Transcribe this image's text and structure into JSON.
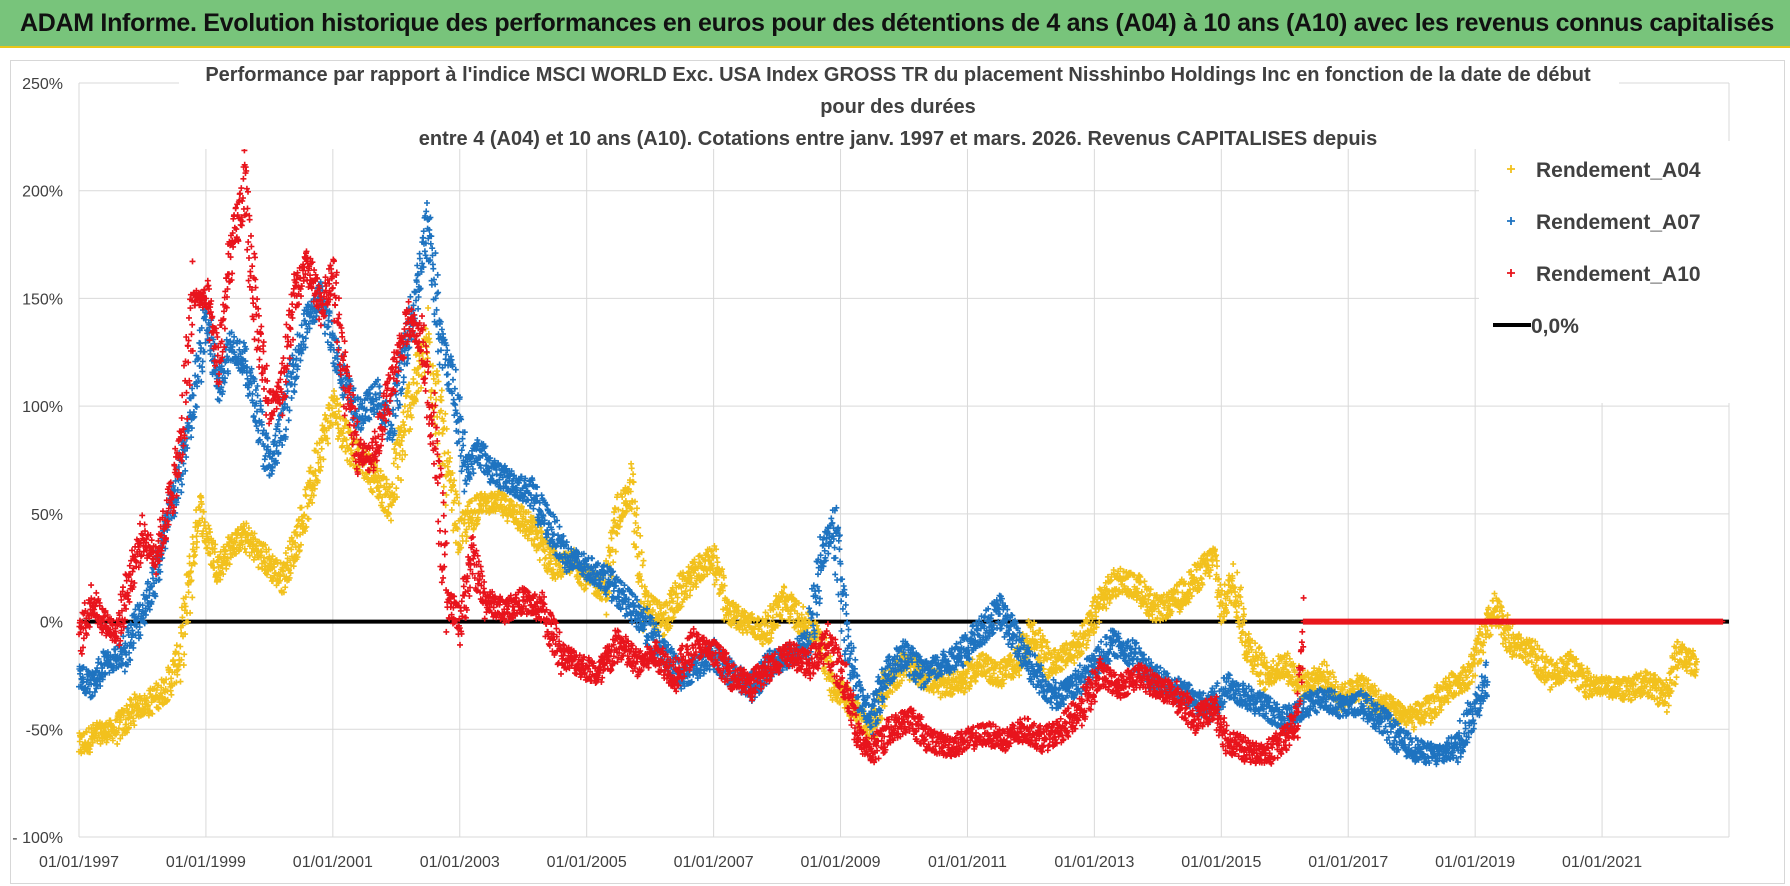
{
  "banner": {
    "text": "ADAM Informe. Evolution historique des performances en euros pour des détentions de 4 ans (A04) à 10 ans (A10) avec les revenus connus capitalisés"
  },
  "chart_data": {
    "type": "scatter",
    "title_lines": [
      "Performance par rapport à l'indice MSCI WORLD Exc. USA Index GROSS TR  du placement Nisshinbo Holdings Inc en fonction de la date de début",
      "pour des durées",
      "entre 4 (A04) et 10 ans (A10). Cotations entre janv. 1997 et mars. 2026. Revenus CAPITALISES depuis"
    ],
    "xlabel": "",
    "ylabel": "",
    "x_range": [
      "01/01/1997",
      "31/12/2022"
    ],
    "x_tick_labels": [
      "01/01/1997",
      "01/01/1999",
      "01/01/2001",
      "01/01/2003",
      "01/01/2005",
      "01/01/2007",
      "01/01/2009",
      "01/01/2011",
      "01/01/2013",
      "01/01/2015",
      "01/01/2017",
      "01/01/2019",
      "01/01/2021"
    ],
    "x_tick_years": [
      1997,
      1999,
      2001,
      2003,
      2005,
      2007,
      2009,
      2011,
      2013,
      2015,
      2017,
      2019,
      2021
    ],
    "ylim": [
      -100,
      250
    ],
    "y_ticks": [
      -100,
      -50,
      0,
      50,
      100,
      150,
      200,
      250
    ],
    "y_tick_labels": [
      "- 100%",
      "-50%",
      "0%",
      "50%",
      "100%",
      "150%",
      "200%",
      "250%"
    ],
    "grid": true,
    "legend_position": "top-right",
    "legend": [
      {
        "name": "Rendement_A04",
        "color": "#f2c11d",
        "marker": "+"
      },
      {
        "name": "Rendement_A07",
        "color": "#1e73c0",
        "marker": "+"
      },
      {
        "name": "Rendement_A10",
        "color": "#e8141c",
        "marker": "+"
      },
      {
        "name": "0,0%",
        "color": "#000000",
        "marker": "line"
      }
    ],
    "series": [
      {
        "name": "Rendement_A04",
        "color": "#f2c11d",
        "points": [
          [
            1997.0,
            -58
          ],
          [
            1997.3,
            -52
          ],
          [
            1997.6,
            -50
          ],
          [
            1997.9,
            -40
          ],
          [
            1998.1,
            -38
          ],
          [
            1998.4,
            -30
          ],
          [
            1998.6,
            -15
          ],
          [
            1998.8,
            30
          ],
          [
            1998.9,
            55
          ],
          [
            1999.0,
            40
          ],
          [
            1999.2,
            25
          ],
          [
            1999.4,
            35
          ],
          [
            1999.6,
            40
          ],
          [
            1999.9,
            30
          ],
          [
            2000.2,
            20
          ],
          [
            2000.4,
            35
          ],
          [
            2000.6,
            55
          ],
          [
            2000.8,
            80
          ],
          [
            2001.0,
            100
          ],
          [
            2001.3,
            80
          ],
          [
            2001.6,
            70
          ],
          [
            2001.9,
            55
          ],
          [
            2002.2,
            100
          ],
          [
            2002.5,
            130
          ],
          [
            2002.8,
            70
          ],
          [
            2003.0,
            40
          ],
          [
            2003.3,
            55
          ],
          [
            2003.6,
            55
          ],
          [
            2003.9,
            50
          ],
          [
            2004.2,
            40
          ],
          [
            2004.5,
            25
          ],
          [
            2004.8,
            28
          ],
          [
            2005.0,
            20
          ],
          [
            2005.3,
            15
          ],
          [
            2005.5,
            50
          ],
          [
            2005.7,
            60
          ],
          [
            2005.9,
            10
          ],
          [
            2006.2,
            0
          ],
          [
            2006.5,
            15
          ],
          [
            2006.8,
            25
          ],
          [
            2007.0,
            30
          ],
          [
            2007.2,
            5
          ],
          [
            2007.5,
            0
          ],
          [
            2007.8,
            -5
          ],
          [
            2008.1,
            10
          ],
          [
            2008.4,
            0
          ],
          [
            2008.7,
            -10
          ],
          [
            2008.9,
            -30
          ],
          [
            2009.1,
            -35
          ],
          [
            2009.3,
            -45
          ],
          [
            2009.5,
            -50
          ],
          [
            2009.7,
            -30
          ],
          [
            2010.0,
            -20
          ],
          [
            2010.3,
            -25
          ],
          [
            2010.6,
            -30
          ],
          [
            2010.9,
            -28
          ],
          [
            2011.2,
            -20
          ],
          [
            2011.5,
            -25
          ],
          [
            2011.8,
            -18
          ],
          [
            2012.0,
            -5
          ],
          [
            2012.3,
            -20
          ],
          [
            2012.6,
            -15
          ],
          [
            2012.9,
            -5
          ],
          [
            2013.1,
            10
          ],
          [
            2013.4,
            20
          ],
          [
            2013.7,
            15
          ],
          [
            2014.0,
            5
          ],
          [
            2014.3,
            10
          ],
          [
            2014.6,
            20
          ],
          [
            2014.9,
            30
          ],
          [
            2015.0,
            5
          ],
          [
            2015.2,
            20
          ],
          [
            2015.4,
            -10
          ],
          [
            2015.7,
            -25
          ],
          [
            2016.0,
            -20
          ],
          [
            2016.3,
            -30
          ],
          [
            2016.6,
            -25
          ],
          [
            2016.9,
            -35
          ],
          [
            2017.2,
            -30
          ],
          [
            2017.5,
            -38
          ],
          [
            2017.8,
            -42
          ],
          [
            2018.0,
            -45
          ],
          [
            2018.3,
            -40
          ],
          [
            2018.6,
            -30
          ],
          [
            2018.9,
            -25
          ],
          [
            2019.1,
            -10
          ],
          [
            2019.3,
            5
          ],
          [
            2019.6,
            -10
          ],
          [
            2019.9,
            -15
          ],
          [
            2020.2,
            -25
          ],
          [
            2020.5,
            -20
          ],
          [
            2020.8,
            -30
          ],
          [
            2021.1,
            -30
          ],
          [
            2021.4,
            -32
          ],
          [
            2021.7,
            -28
          ],
          [
            2022.0,
            -35
          ],
          [
            2022.2,
            -15
          ],
          [
            2022.5,
            -20
          ]
        ]
      },
      {
        "name": "Rendement_A07",
        "color": "#1e73c0",
        "points": [
          [
            1997.0,
            -25
          ],
          [
            1997.2,
            -30
          ],
          [
            1997.4,
            -20
          ],
          [
            1997.7,
            -15
          ],
          [
            1998.0,
            5
          ],
          [
            1998.2,
            20
          ],
          [
            1998.4,
            45
          ],
          [
            1998.6,
            70
          ],
          [
            1998.8,
            100
          ],
          [
            1999.0,
            140
          ],
          [
            1999.2,
            110
          ],
          [
            1999.4,
            130
          ],
          [
            1999.6,
            120
          ],
          [
            1999.8,
            100
          ],
          [
            2000.0,
            70
          ],
          [
            2000.2,
            90
          ],
          [
            2000.4,
            120
          ],
          [
            2000.6,
            140
          ],
          [
            2000.8,
            150
          ],
          [
            2001.0,
            130
          ],
          [
            2001.2,
            110
          ],
          [
            2001.4,
            95
          ],
          [
            2001.7,
            105
          ],
          [
            2001.9,
            90
          ],
          [
            2002.1,
            120
          ],
          [
            2002.3,
            150
          ],
          [
            2002.5,
            185
          ],
          [
            2002.7,
            130
          ],
          [
            2002.9,
            110
          ],
          [
            2003.1,
            70
          ],
          [
            2003.3,
            80
          ],
          [
            2003.5,
            70
          ],
          [
            2003.8,
            65
          ],
          [
            2004.1,
            60
          ],
          [
            2004.4,
            45
          ],
          [
            2004.7,
            30
          ],
          [
            2005.0,
            25
          ],
          [
            2005.3,
            20
          ],
          [
            2005.6,
            10
          ],
          [
            2005.9,
            0
          ],
          [
            2006.2,
            -15
          ],
          [
            2006.5,
            -25
          ],
          [
            2006.8,
            -20
          ],
          [
            2007.0,
            -15
          ],
          [
            2007.3,
            -25
          ],
          [
            2007.6,
            -30
          ],
          [
            2007.9,
            -20
          ],
          [
            2008.2,
            -15
          ],
          [
            2008.5,
            -10
          ],
          [
            2008.7,
            30
          ],
          [
            2008.9,
            45
          ],
          [
            2009.1,
            -10
          ],
          [
            2009.3,
            -35
          ],
          [
            2009.5,
            -45
          ],
          [
            2009.7,
            -25
          ],
          [
            2010.0,
            -15
          ],
          [
            2010.3,
            -25
          ],
          [
            2010.6,
            -20
          ],
          [
            2010.9,
            -15
          ],
          [
            2011.2,
            -5
          ],
          [
            2011.5,
            5
          ],
          [
            2011.8,
            -10
          ],
          [
            2012.1,
            -25
          ],
          [
            2012.4,
            -35
          ],
          [
            2012.7,
            -30
          ],
          [
            2013.0,
            -20
          ],
          [
            2013.3,
            -10
          ],
          [
            2013.6,
            -15
          ],
          [
            2013.9,
            -25
          ],
          [
            2014.2,
            -30
          ],
          [
            2014.5,
            -35
          ],
          [
            2014.8,
            -40
          ],
          [
            2015.1,
            -30
          ],
          [
            2015.4,
            -35
          ],
          [
            2015.7,
            -40
          ],
          [
            2016.0,
            -45
          ],
          [
            2016.3,
            -40
          ],
          [
            2016.6,
            -35
          ],
          [
            2016.9,
            -40
          ],
          [
            2017.2,
            -38
          ],
          [
            2017.5,
            -45
          ],
          [
            2017.8,
            -55
          ],
          [
            2018.1,
            -60
          ],
          [
            2018.4,
            -62
          ],
          [
            2018.7,
            -58
          ],
          [
            2019.0,
            -40
          ],
          [
            2019.2,
            -25
          ]
        ]
      },
      {
        "name": "Rendement_A10",
        "color": "#e8141c",
        "points": [
          [
            1997.0,
            -10
          ],
          [
            1997.2,
            10
          ],
          [
            1997.4,
            0
          ],
          [
            1997.6,
            -5
          ],
          [
            1997.8,
            20
          ],
          [
            1998.0,
            40
          ],
          [
            1998.2,
            30
          ],
          [
            1998.4,
            50
          ],
          [
            1998.6,
            80
          ],
          [
            1998.8,
            150
          ],
          [
            1999.0,
            150
          ],
          [
            1999.2,
            120
          ],
          [
            1999.4,
            170
          ],
          [
            1999.6,
            200
          ],
          [
            1999.8,
            140
          ],
          [
            2000.0,
            100
          ],
          [
            2000.2,
            110
          ],
          [
            2000.4,
            150
          ],
          [
            2000.6,
            165
          ],
          [
            2000.8,
            145
          ],
          [
            2001.0,
            160
          ],
          [
            2001.2,
            110
          ],
          [
            2001.4,
            80
          ],
          [
            2001.6,
            75
          ],
          [
            2001.8,
            95
          ],
          [
            2002.0,
            120
          ],
          [
            2002.2,
            140
          ],
          [
            2002.4,
            130
          ],
          [
            2002.6,
            85
          ],
          [
            2002.8,
            10
          ],
          [
            2003.0,
            0
          ],
          [
            2003.2,
            30
          ],
          [
            2003.4,
            10
          ],
          [
            2003.7,
            5
          ],
          [
            2004.0,
            10
          ],
          [
            2004.3,
            5
          ],
          [
            2004.6,
            -15
          ],
          [
            2004.9,
            -20
          ],
          [
            2005.2,
            -25
          ],
          [
            2005.5,
            -10
          ],
          [
            2005.8,
            -20
          ],
          [
            2006.1,
            -15
          ],
          [
            2006.4,
            -25
          ],
          [
            2006.7,
            -10
          ],
          [
            2007.0,
            -15
          ],
          [
            2007.3,
            -25
          ],
          [
            2007.6,
            -30
          ],
          [
            2007.9,
            -20
          ],
          [
            2008.2,
            -15
          ],
          [
            2008.5,
            -20
          ],
          [
            2008.8,
            -10
          ],
          [
            2009.1,
            -30
          ],
          [
            2009.3,
            -55
          ],
          [
            2009.5,
            -60
          ],
          [
            2009.8,
            -50
          ],
          [
            2010.1,
            -45
          ],
          [
            2010.4,
            -55
          ],
          [
            2010.7,
            -58
          ],
          [
            2011.0,
            -55
          ],
          [
            2011.3,
            -52
          ],
          [
            2011.6,
            -55
          ],
          [
            2011.9,
            -50
          ],
          [
            2012.2,
            -55
          ],
          [
            2012.5,
            -50
          ],
          [
            2012.8,
            -40
          ],
          [
            2013.1,
            -25
          ],
          [
            2013.4,
            -30
          ],
          [
            2013.7,
            -25
          ],
          [
            2014.0,
            -30
          ],
          [
            2014.3,
            -35
          ],
          [
            2014.6,
            -45
          ],
          [
            2014.9,
            -40
          ],
          [
            2015.1,
            -55
          ],
          [
            2015.4,
            -60
          ],
          [
            2015.7,
            -62
          ],
          [
            2016.0,
            -55
          ],
          [
            2016.2,
            -45
          ],
          [
            2016.3,
            0
          ],
          [
            2017.0,
            0
          ],
          [
            2018.0,
            0
          ],
          [
            2019.0,
            0
          ],
          [
            2020.0,
            0
          ],
          [
            2021.0,
            0
          ],
          [
            2022.0,
            0
          ],
          [
            2022.9,
            0
          ]
        ]
      }
    ],
    "reference_line": {
      "label": "0,0%",
      "value": 0,
      "color": "#000000"
    }
  }
}
